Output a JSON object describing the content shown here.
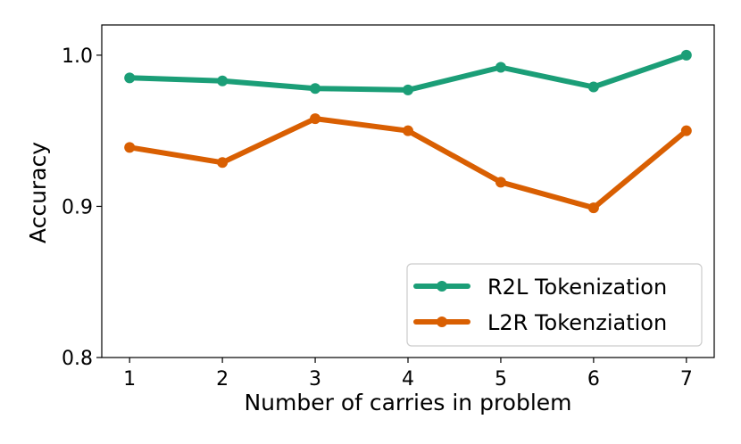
{
  "chart_data": {
    "type": "line",
    "title": "",
    "xlabel": "Number of carries in problem",
    "ylabel": "Accuracy",
    "x": [
      1,
      2,
      3,
      4,
      5,
      6,
      7
    ],
    "xlim": [
      0.7,
      7.3
    ],
    "ylim": [
      0.8,
      1.02
    ],
    "yticks": [
      0.8,
      0.9,
      1.0
    ],
    "ytick_labels": [
      "0.8",
      "0.9",
      "1.0"
    ],
    "xtick_labels": [
      "1",
      "2",
      "3",
      "4",
      "5",
      "6",
      "7"
    ],
    "grid": false,
    "legend_position": "bottom-right",
    "series": [
      {
        "name": "R2L Tokenization",
        "color": "#1b9e77",
        "values": [
          0.985,
          0.983,
          0.978,
          0.977,
          0.992,
          0.979,
          1.0
        ]
      },
      {
        "name": "L2R Tokenziation",
        "color": "#d95f02",
        "values": [
          0.939,
          0.929,
          0.958,
          0.95,
          0.916,
          0.899,
          0.95
        ]
      }
    ]
  }
}
